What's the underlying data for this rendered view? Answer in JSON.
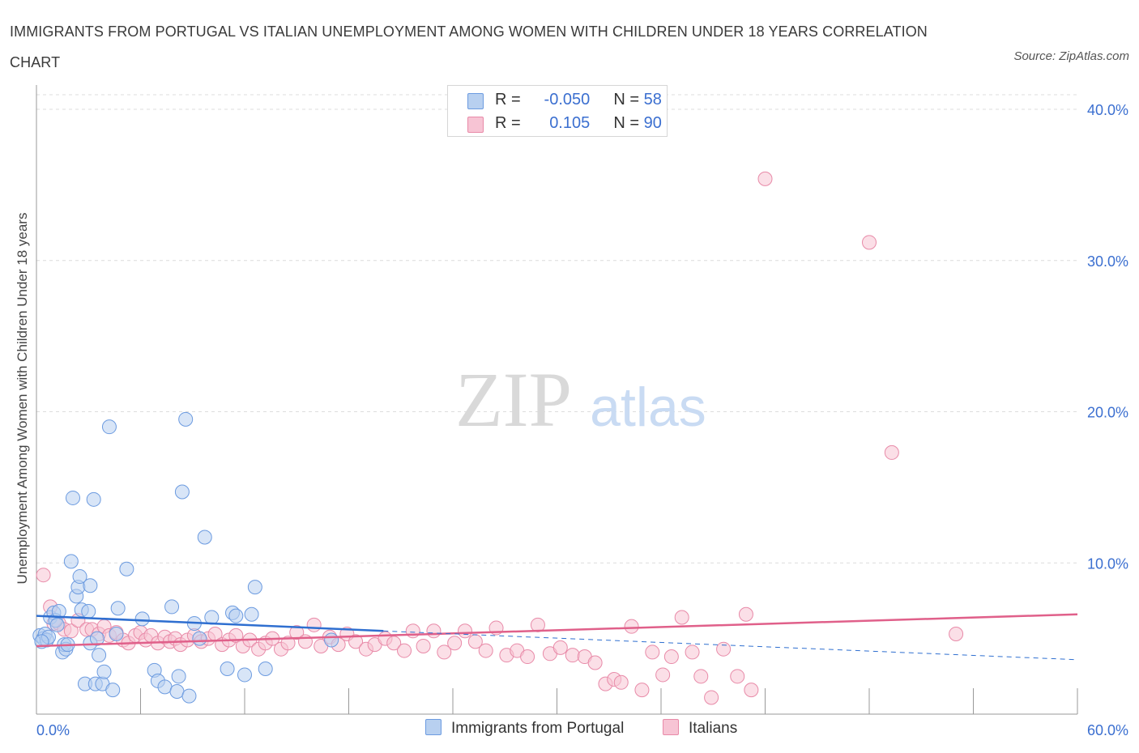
{
  "title": "IMMIGRANTS FROM PORTUGAL VS ITALIAN UNEMPLOYMENT AMONG WOMEN WITH CHILDREN UNDER 18 YEARS CORRELATION CHART",
  "source": "Source: ZipAtlas.com",
  "watermark": {
    "zip": "ZIP",
    "atlas": "atlas"
  },
  "legend_box": {
    "rows": [
      {
        "r_label": "R =",
        "r_value": "-0.050",
        "n_label": "N =",
        "n_value": "58",
        "fill": "#b8d0f0",
        "stroke": "#6c9be0"
      },
      {
        "r_label": "R =",
        "r_value": "0.105",
        "n_label": "N =",
        "n_value": "90",
        "fill": "#f7c4d4",
        "stroke": "#e88aa8"
      }
    ]
  },
  "bottom_legend": [
    {
      "label": "Immigrants from Portugal",
      "fill": "#b8d0f0",
      "stroke": "#6c9be0"
    },
    {
      "label": "Italians",
      "fill": "#f7c4d4",
      "stroke": "#e88aa8"
    }
  ],
  "colors": {
    "blue_line": "#2f6fd0",
    "pink_line": "#e0608a",
    "tick_text": "#3b6fd0",
    "grid": "#dcdcdc"
  },
  "chart_data": {
    "type": "scatter",
    "xlabel": "",
    "ylabel": "Unemployment Among Women with Children Under 18 years",
    "xlim": [
      0,
      60
    ],
    "ylim": [
      0,
      40
    ],
    "x_tick_labels": [
      "0.0%",
      "60.0%"
    ],
    "y_ticks": [
      10,
      20,
      30,
      40
    ],
    "y_tick_labels": [
      "10.0%",
      "20.0%",
      "30.0%",
      "40.0%"
    ],
    "grid": true,
    "series": [
      {
        "name": "Immigrants from Portugal",
        "r": -0.05,
        "n": 58,
        "trend_solid": [
          [
            0,
            6.5
          ],
          [
            20,
            5.5
          ]
        ],
        "trend_dashed": [
          [
            20,
            5.5
          ],
          [
            60,
            3.6
          ]
        ],
        "points": [
          [
            0.2,
            5.2
          ],
          [
            0.4,
            5.0
          ],
          [
            0.5,
            5.3
          ],
          [
            0.6,
            4.9
          ],
          [
            0.7,
            5.1
          ],
          [
            0.8,
            6.4
          ],
          [
            1.0,
            6.7
          ],
          [
            1.1,
            6.2
          ],
          [
            1.2,
            5.9
          ],
          [
            1.3,
            6.8
          ],
          [
            1.5,
            4.1
          ],
          [
            1.6,
            4.6
          ],
          [
            1.7,
            4.3
          ],
          [
            1.8,
            4.6
          ],
          [
            2.0,
            10.1
          ],
          [
            2.1,
            14.3
          ],
          [
            2.3,
            7.8
          ],
          [
            2.4,
            8.4
          ],
          [
            2.5,
            9.1
          ],
          [
            2.6,
            6.9
          ],
          [
            2.8,
            2.0
          ],
          [
            3.0,
            6.8
          ],
          [
            3.1,
            4.7
          ],
          [
            3.1,
            8.5
          ],
          [
            3.3,
            14.2
          ],
          [
            3.4,
            2.0
          ],
          [
            3.5,
            5.0
          ],
          [
            3.6,
            3.9
          ],
          [
            3.8,
            2.0
          ],
          [
            3.9,
            2.8
          ],
          [
            4.2,
            19.0
          ],
          [
            4.4,
            1.6
          ],
          [
            4.6,
            5.3
          ],
          [
            4.7,
            7.0
          ],
          [
            5.2,
            9.6
          ],
          [
            6.1,
            6.3
          ],
          [
            6.8,
            2.9
          ],
          [
            7.0,
            2.2
          ],
          [
            7.4,
            1.8
          ],
          [
            7.8,
            7.1
          ],
          [
            8.1,
            1.5
          ],
          [
            8.2,
            2.5
          ],
          [
            8.4,
            14.7
          ],
          [
            8.6,
            19.5
          ],
          [
            8.8,
            1.2
          ],
          [
            9.1,
            6.0
          ],
          [
            9.4,
            5.0
          ],
          [
            9.7,
            11.7
          ],
          [
            10.1,
            6.4
          ],
          [
            11.0,
            3.0
          ],
          [
            11.3,
            6.7
          ],
          [
            11.5,
            6.5
          ],
          [
            12.0,
            2.6
          ],
          [
            12.4,
            6.6
          ],
          [
            12.6,
            8.4
          ],
          [
            13.2,
            3.0
          ],
          [
            17.0,
            4.9
          ],
          [
            0.3,
            4.8
          ]
        ]
      },
      {
        "name": "Italians",
        "r": 0.105,
        "n": 90,
        "trend_solid": [
          [
            0,
            4.5
          ],
          [
            60,
            6.6
          ]
        ],
        "points": [
          [
            0.4,
            9.2
          ],
          [
            0.8,
            7.1
          ],
          [
            1.0,
            6.0
          ],
          [
            1.3,
            6.0
          ],
          [
            1.6,
            5.6
          ],
          [
            2.0,
            5.5
          ],
          [
            2.4,
            6.2
          ],
          [
            2.9,
            5.6
          ],
          [
            3.2,
            5.6
          ],
          [
            3.6,
            5.3
          ],
          [
            3.9,
            5.8
          ],
          [
            4.2,
            5.2
          ],
          [
            4.6,
            5.4
          ],
          [
            5.0,
            4.9
          ],
          [
            5.3,
            4.7
          ],
          [
            5.7,
            5.2
          ],
          [
            6.0,
            5.4
          ],
          [
            6.3,
            4.9
          ],
          [
            6.6,
            5.2
          ],
          [
            7.0,
            4.7
          ],
          [
            7.4,
            5.1
          ],
          [
            7.7,
            4.8
          ],
          [
            8.0,
            5.0
          ],
          [
            8.3,
            4.6
          ],
          [
            8.7,
            4.9
          ],
          [
            9.1,
            5.2
          ],
          [
            9.5,
            4.8
          ],
          [
            9.9,
            5.0
          ],
          [
            10.3,
            5.3
          ],
          [
            10.7,
            4.6
          ],
          [
            11.1,
            4.9
          ],
          [
            11.5,
            5.2
          ],
          [
            11.9,
            4.5
          ],
          [
            12.3,
            4.9
          ],
          [
            12.8,
            4.3
          ],
          [
            13.2,
            4.7
          ],
          [
            13.6,
            5.0
          ],
          [
            14.1,
            4.3
          ],
          [
            14.5,
            4.7
          ],
          [
            15.0,
            5.4
          ],
          [
            15.5,
            4.8
          ],
          [
            16.0,
            5.9
          ],
          [
            16.4,
            4.5
          ],
          [
            16.9,
            5.1
          ],
          [
            17.4,
            4.6
          ],
          [
            17.9,
            5.3
          ],
          [
            18.4,
            4.8
          ],
          [
            19.0,
            4.3
          ],
          [
            19.5,
            4.6
          ],
          [
            20.1,
            5.0
          ],
          [
            20.6,
            4.7
          ],
          [
            21.2,
            4.2
          ],
          [
            21.7,
            5.5
          ],
          [
            22.3,
            4.5
          ],
          [
            22.9,
            5.5
          ],
          [
            23.5,
            4.1
          ],
          [
            24.1,
            4.7
          ],
          [
            24.7,
            5.5
          ],
          [
            25.3,
            4.8
          ],
          [
            25.9,
            4.2
          ],
          [
            26.5,
            5.7
          ],
          [
            27.1,
            3.9
          ],
          [
            27.7,
            4.2
          ],
          [
            28.3,
            3.8
          ],
          [
            28.9,
            5.9
          ],
          [
            29.6,
            4.0
          ],
          [
            30.2,
            4.4
          ],
          [
            30.9,
            3.9
          ],
          [
            31.6,
            3.8
          ],
          [
            32.2,
            3.4
          ],
          [
            32.8,
            2.0
          ],
          [
            33.3,
            2.3
          ],
          [
            33.7,
            2.1
          ],
          [
            34.3,
            5.8
          ],
          [
            34.9,
            1.6
          ],
          [
            35.5,
            4.1
          ],
          [
            36.1,
            2.6
          ],
          [
            36.6,
            3.8
          ],
          [
            37.2,
            6.4
          ],
          [
            37.8,
            4.1
          ],
          [
            38.3,
            2.5
          ],
          [
            38.9,
            1.1
          ],
          [
            39.6,
            4.3
          ],
          [
            40.4,
            2.5
          ],
          [
            40.9,
            6.6
          ],
          [
            41.2,
            1.6
          ],
          [
            42.0,
            35.4
          ],
          [
            48.0,
            31.2
          ],
          [
            49.3,
            17.3
          ],
          [
            53.0,
            5.3
          ]
        ]
      }
    ]
  }
}
